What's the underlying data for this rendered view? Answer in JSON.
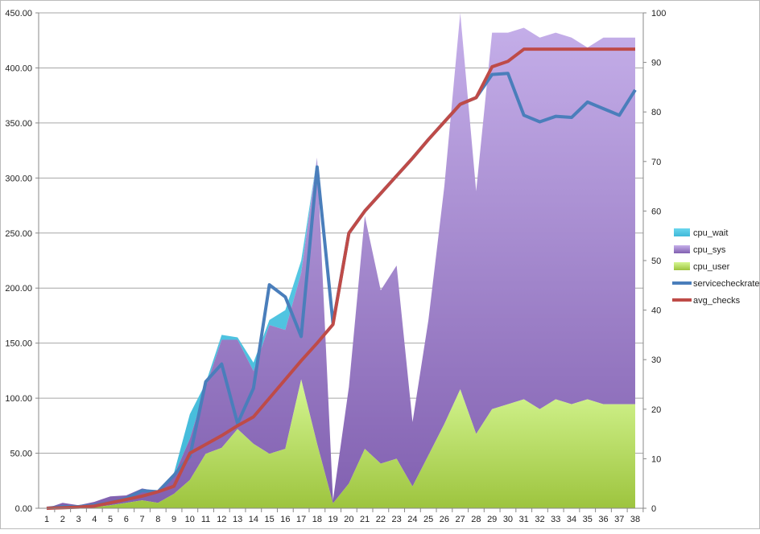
{
  "chart_data": {
    "type": "area",
    "categories": [
      "1",
      "2",
      "3",
      "4",
      "5",
      "6",
      "7",
      "8",
      "9",
      "10",
      "11",
      "12",
      "13",
      "14",
      "15",
      "16",
      "17",
      "18",
      "19",
      "20",
      "21",
      "22",
      "23",
      "24",
      "25",
      "26",
      "27",
      "28",
      "29",
      "30",
      "31",
      "32",
      "33",
      "34",
      "35",
      "36",
      "37",
      "38"
    ],
    "left_axis": {
      "range": [
        0,
        450
      ],
      "ticks": [
        "0.00",
        "50.00",
        "100.00",
        "150.00",
        "200.00",
        "250.00",
        "300.00",
        "350.00",
        "400.00",
        "450.00"
      ]
    },
    "right_axis": {
      "range": [
        0,
        100
      ],
      "ticks": [
        "0",
        "10",
        "20",
        "30",
        "40",
        "50",
        "60",
        "70",
        "80",
        "90",
        "100"
      ]
    },
    "grid": true,
    "legend_placement": "right",
    "stacked_areas_axis": "right",
    "series": [
      {
        "name": "cpu_user",
        "kind": "area",
        "color": "#b5db5c",
        "values": [
          0,
          0.5,
          0.2,
          0.2,
          0.6,
          1.1,
          1.6,
          1.1,
          2.9,
          5.7,
          11,
          12.2,
          16,
          13,
          11,
          12,
          26,
          13,
          1,
          5,
          12,
          9,
          10,
          4.4,
          10.7,
          17,
          24,
          15,
          20,
          21,
          22,
          20,
          22,
          21,
          22,
          21,
          21,
          21
        ]
      },
      {
        "name": "cpu_sys",
        "kind": "area",
        "color": "#a27fcb",
        "values": [
          0,
          0.6,
          0.4,
          1.1,
          1.8,
          1.5,
          2.4,
          2.3,
          3.7,
          8.3,
          13.5,
          21.8,
          18,
          14.7,
          26,
          24,
          21.5,
          57.8,
          0.6,
          19.5,
          47,
          35,
          39,
          13,
          27.3,
          48,
          76,
          49,
          76,
          75,
          75,
          75,
          74,
          74,
          71,
          74,
          74,
          74
        ]
      },
      {
        "name": "cpu_wait",
        "kind": "area",
        "color": "#5fcfe6",
        "values": [
          0,
          0,
          0,
          0,
          0,
          0,
          0,
          0,
          0.5,
          5,
          0.8,
          1,
          0.5,
          1.7,
          1,
          4,
          2.5,
          0,
          0,
          0,
          0,
          0,
          0,
          0,
          0,
          0,
          0,
          0,
          0,
          0,
          0,
          0,
          0,
          0,
          0,
          0,
          0,
          0
        ]
      },
      {
        "name": "servicecheckrate",
        "kind": "line",
        "axis": "left",
        "color": "#4a7ebb",
        "values": [
          0,
          1.5,
          1.5,
          3,
          5,
          9,
          16,
          15,
          30,
          47,
          115,
          131,
          77,
          109,
          203,
          192,
          156,
          310,
          168,
          250,
          270,
          286,
          302,
          318,
          335,
          351,
          367,
          373,
          394,
          395,
          357,
          351,
          356,
          355,
          369,
          363,
          357,
          380
        ]
      },
      {
        "name": "avg_checks",
        "kind": "line",
        "axis": "left",
        "color": "#be4b48",
        "values": [
          0,
          0.5,
          1,
          2,
          5,
          8,
          11,
          15,
          20,
          50,
          58,
          66,
          75,
          83,
          100,
          117,
          134,
          150,
          167,
          250,
          270,
          286,
          302,
          318,
          335,
          351,
          367,
          373,
          401,
          406,
          417,
          417,
          417,
          417,
          417,
          417,
          417,
          417
        ]
      }
    ]
  }
}
